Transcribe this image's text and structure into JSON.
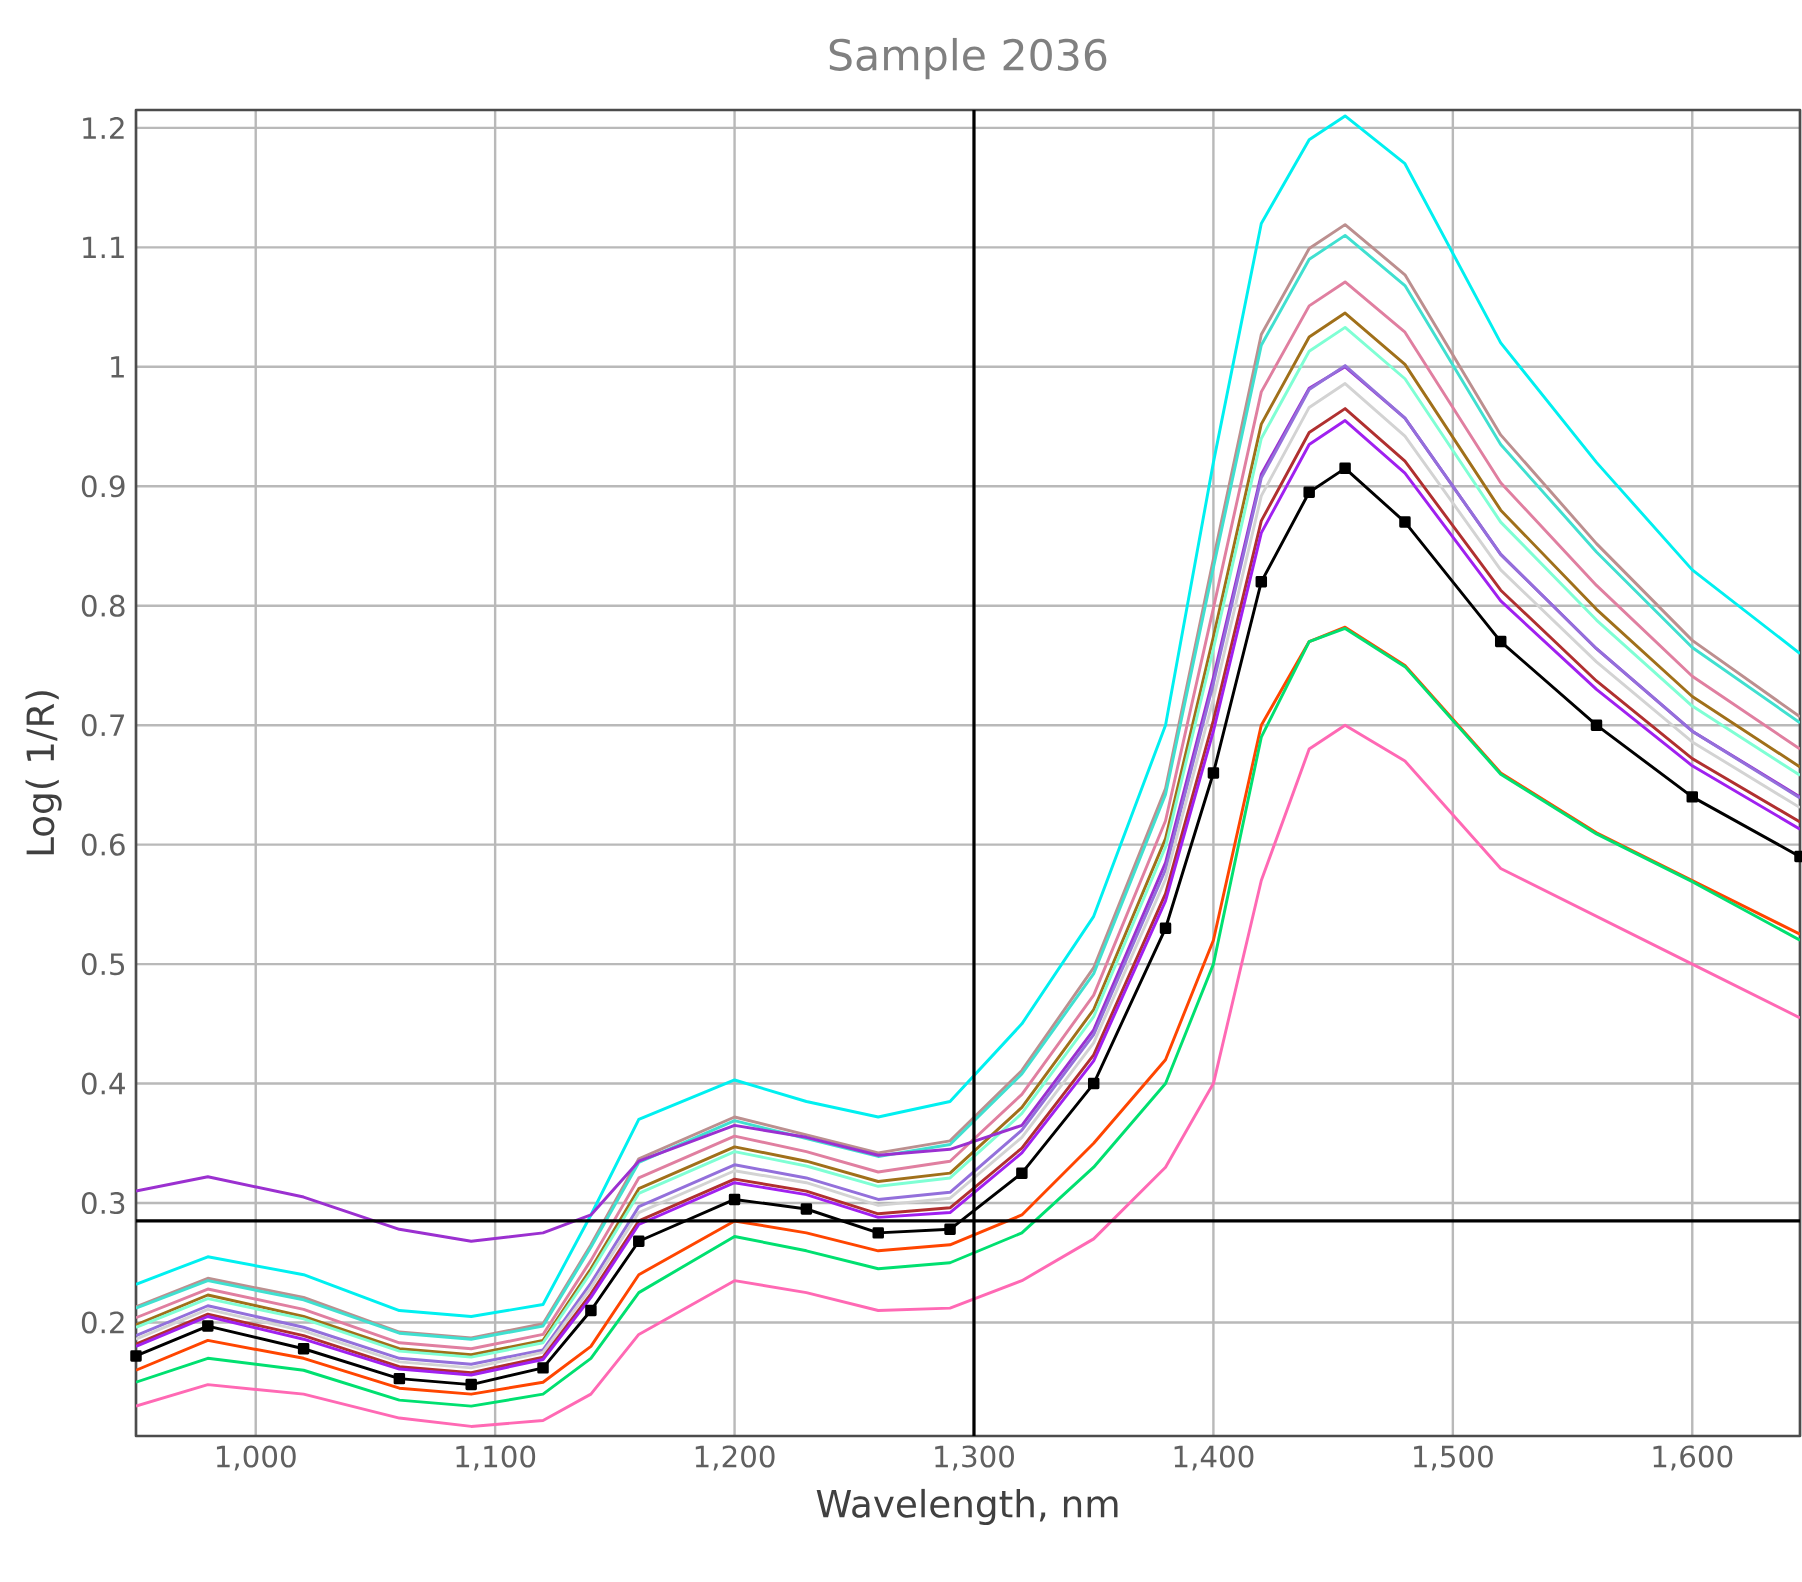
{
  "chart_data": {
    "type": "line",
    "title": "Sample 2036",
    "xlabel": "Wavelength, nm",
    "ylabel": "Log( 1/R)",
    "x": [
      950,
      980,
      1020,
      1060,
      1090,
      1120,
      1140,
      1160,
      1200,
      1230,
      1260,
      1290,
      1320,
      1350,
      1380,
      1400,
      1420,
      1440,
      1455,
      1480,
      1520,
      1560,
      1600,
      1645
    ],
    "xlim": [
      950,
      1645
    ],
    "ylim": [
      0.105,
      1.215
    ],
    "xticks": [
      {
        "value": 1000,
        "label": "1,000"
      },
      {
        "value": 1100,
        "label": "1,100"
      },
      {
        "value": 1200,
        "label": "1,200"
      },
      {
        "value": 1300,
        "label": "1,300"
      },
      {
        "value": 1400,
        "label": "1,400"
      },
      {
        "value": 1500,
        "label": "1,500"
      },
      {
        "value": 1600,
        "label": "1,600"
      }
    ],
    "yticks": [
      0.2,
      0.3,
      0.4,
      0.5,
      0.6,
      0.7,
      0.8,
      0.9,
      1,
      1.1,
      1.2
    ],
    "grid": true,
    "marker": "none",
    "line_style": "solid",
    "ref_lines": [
      {
        "axis": "y",
        "value": 0.285,
        "color": "#000000"
      },
      {
        "axis": "x",
        "value": 1300,
        "color": "#000000"
      }
    ],
    "series": [
      {
        "color": "#00f0f0",
        "values": [
          0.232,
          0.255,
          0.24,
          0.21,
          0.205,
          0.215,
          0.29,
          0.37,
          0.403,
          0.385,
          0.372,
          0.385,
          0.45,
          0.54,
          0.7,
          0.92,
          1.12,
          1.19,
          1.21,
          1.17,
          1.02,
          0.92,
          0.83,
          0.76
        ]
      },
      {
        "color": "#bc8f8f",
        "values": [
          0.213,
          0.237,
          0.221,
          0.192,
          0.187,
          0.199,
          0.265,
          0.337,
          0.372,
          0.357,
          0.342,
          0.352,
          0.411,
          0.497,
          0.647,
          0.839,
          1.027,
          1.099,
          1.119,
          1.077,
          0.943,
          0.852,
          0.771,
          0.707
        ]
      },
      {
        "color": "#40e0d0",
        "values": [
          0.212,
          0.235,
          0.219,
          0.191,
          0.186,
          0.197,
          0.263,
          0.334,
          0.369,
          0.354,
          0.339,
          0.349,
          0.408,
          0.492,
          0.642,
          0.832,
          1.018,
          1.09,
          1.11,
          1.068,
          0.935,
          0.845,
          0.765,
          0.702
        ]
      },
      {
        "color": "#e07fa0",
        "values": [
          0.204,
          0.228,
          0.211,
          0.183,
          0.178,
          0.19,
          0.252,
          0.321,
          0.356,
          0.343,
          0.326,
          0.335,
          0.391,
          0.474,
          0.62,
          0.798,
          0.979,
          1.051,
          1.071,
          1.029,
          0.903,
          0.817,
          0.741,
          0.68
        ]
      },
      {
        "color": "#a0701a",
        "values": [
          0.198,
          0.223,
          0.205,
          0.178,
          0.173,
          0.185,
          0.245,
          0.312,
          0.347,
          0.335,
          0.318,
          0.325,
          0.38,
          0.462,
          0.605,
          0.774,
          0.952,
          1.025,
          1.045,
          1.002,
          0.88,
          0.797,
          0.724,
          0.665
        ]
      },
      {
        "color": "#7fffd4",
        "values": [
          0.196,
          0.22,
          0.203,
          0.176,
          0.171,
          0.183,
          0.242,
          0.308,
          0.343,
          0.331,
          0.314,
          0.321,
          0.375,
          0.456,
          0.598,
          0.764,
          0.94,
          1.013,
          1.033,
          0.99,
          0.87,
          0.788,
          0.716,
          0.658
        ]
      },
      {
        "color": "#9b30d0",
        "values": [
          0.31,
          0.322,
          0.305,
          0.278,
          0.268,
          0.275,
          0.29,
          0.335,
          0.365,
          0.355,
          0.34,
          0.345,
          0.365,
          0.445,
          0.585,
          0.74,
          0.91,
          0.982,
          1.0,
          0.957,
          0.843,
          0.764,
          0.695,
          0.64
        ]
      },
      {
        "color": "#9370db",
        "values": [
          0.189,
          0.214,
          0.196,
          0.17,
          0.165,
          0.177,
          0.233,
          0.297,
          0.332,
          0.321,
          0.303,
          0.309,
          0.361,
          0.441,
          0.579,
          0.735,
          0.907,
          0.981,
          1.001,
          0.957,
          0.843,
          0.764,
          0.695,
          0.639
        ]
      },
      {
        "color": "#d3d3d3",
        "values": [
          0.186,
          0.211,
          0.193,
          0.167,
          0.162,
          0.175,
          0.229,
          0.292,
          0.327,
          0.317,
          0.298,
          0.304,
          0.355,
          0.434,
          0.571,
          0.722,
          0.892,
          0.966,
          0.986,
          0.942,
          0.83,
          0.753,
          0.686,
          0.631
        ]
      },
      {
        "color": "#b03030",
        "values": [
          0.182,
          0.207,
          0.189,
          0.163,
          0.158,
          0.171,
          0.224,
          0.285,
          0.32,
          0.31,
          0.291,
          0.296,
          0.346,
          0.424,
          0.559,
          0.704,
          0.871,
          0.945,
          0.965,
          0.921,
          0.813,
          0.737,
          0.672,
          0.619
        ]
      },
      {
        "color": "#a020f0",
        "values": [
          0.18,
          0.205,
          0.186,
          0.161,
          0.156,
          0.169,
          0.221,
          0.282,
          0.317,
          0.307,
          0.288,
          0.292,
          0.342,
          0.419,
          0.553,
          0.695,
          0.861,
          0.935,
          0.955,
          0.911,
          0.804,
          0.73,
          0.666,
          0.613
        ]
      },
      {
        "color": "#000000",
        "marker": "square",
        "values": [
          0.172,
          0.197,
          0.178,
          0.153,
          0.148,
          0.162,
          0.21,
          0.268,
          0.303,
          0.295,
          0.275,
          0.278,
          0.325,
          0.4,
          0.53,
          0.66,
          0.82,
          0.895,
          0.915,
          0.87,
          0.77,
          0.7,
          0.64,
          0.59
        ]
      },
      {
        "color": "#ff4500",
        "values": [
          0.16,
          0.185,
          0.17,
          0.145,
          0.14,
          0.15,
          0.18,
          0.24,
          0.285,
          0.275,
          0.26,
          0.265,
          0.29,
          0.35,
          0.42,
          0.52,
          0.7,
          0.77,
          0.782,
          0.75,
          0.66,
          0.61,
          0.57,
          0.525
        ]
      },
      {
        "color": "#00e070",
        "values": [
          0.15,
          0.17,
          0.16,
          0.135,
          0.13,
          0.14,
          0.17,
          0.225,
          0.272,
          0.26,
          0.245,
          0.25,
          0.275,
          0.33,
          0.4,
          0.5,
          0.69,
          0.77,
          0.781,
          0.749,
          0.659,
          0.609,
          0.569,
          0.52
        ]
      },
      {
        "color": "#ff69b4",
        "values": [
          0.13,
          0.148,
          0.14,
          0.12,
          0.113,
          0.118,
          0.14,
          0.19,
          0.235,
          0.225,
          0.21,
          0.212,
          0.235,
          0.27,
          0.33,
          0.4,
          0.57,
          0.68,
          0.7,
          0.67,
          0.58,
          0.54,
          0.5,
          0.455
        ]
      }
    ]
  }
}
